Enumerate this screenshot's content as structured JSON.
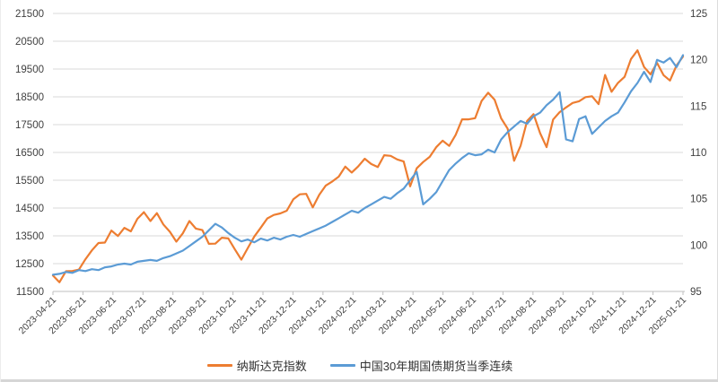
{
  "chart_data": {
    "type": "line",
    "title": "",
    "legend_position": "bottom",
    "grid": "horizontal-gridlines",
    "left_axis": {
      "min": 11500,
      "max": 21500,
      "step": 1000,
      "tick_labels": [
        "21500",
        "20500",
        "19500",
        "18500",
        "17500",
        "16500",
        "15500",
        "14500",
        "13500",
        "12500",
        "11500"
      ]
    },
    "right_axis": {
      "min": 95,
      "max": 125,
      "step": 5,
      "tick_labels": [
        "125",
        "120",
        "115",
        "110",
        "105",
        "100",
        "95"
      ]
    },
    "x_tick_labels": [
      "2023-04-21",
      "2023-05-21",
      "2023-06-21",
      "2023-07-21",
      "2023-08-21",
      "2023-09-21",
      "2023-10-21",
      "2023-11-21",
      "2023-12-21",
      "2024-01-21",
      "2024-02-21",
      "2024-03-21",
      "2024-04-21",
      "2024-05-21",
      "2024-06-21",
      "2024-07-21",
      "2024-08-21",
      "2024-09-21",
      "2024-10-21",
      "2024-11-21",
      "2024-12-21",
      "2025-01-21"
    ],
    "series": [
      {
        "name": "纳斯达克指数",
        "color": "#ED7D31",
        "axis": "left",
        "values": [
          12072,
          11830,
          12227,
          12235,
          12285,
          12658,
          12976,
          13241,
          13259,
          13690,
          13493,
          13788,
          13661,
          14114,
          14353,
          14032,
          14317,
          13909,
          13645,
          13291,
          13591,
          14032,
          13762,
          13708,
          13212,
          13219,
          13431,
          13407,
          13018,
          12643,
          13062,
          13478,
          13798,
          14125,
          14251,
          14305,
          14404,
          14814,
          14993,
          15011,
          14524,
          14973,
          15311,
          15455,
          15629,
          15991,
          15776,
          15997,
          16275,
          16085,
          15973,
          16401,
          16379,
          16248,
          16175,
          15282,
          15928,
          16156,
          16341,
          16686,
          16921,
          16735,
          17133,
          17689,
          17689,
          17733,
          18353,
          18647,
          18398,
          17727,
          17358,
          16200,
          16745,
          17632,
          17877,
          17194,
          16690,
          17684,
          17948,
          18119,
          18280,
          18343,
          18490,
          18519,
          18240,
          19287,
          18680,
          19004,
          19218,
          19860,
          20174,
          19573,
          19311,
          19722,
          19280,
          19088,
          19630,
          19950
        ]
      },
      {
        "name": "中国30年期国债期货当季连续",
        "color": "#5B9BD5",
        "axis": "right",
        "values": [
          96.8,
          96.9,
          97.1,
          97.0,
          97.3,
          97.2,
          97.4,
          97.3,
          97.6,
          97.7,
          97.9,
          98.0,
          97.9,
          98.2,
          98.3,
          98.4,
          98.3,
          98.6,
          98.8,
          99.1,
          99.4,
          99.9,
          100.4,
          100.9,
          101.6,
          102.3,
          101.9,
          101.3,
          100.8,
          100.4,
          100.6,
          100.3,
          100.7,
          100.5,
          100.8,
          100.6,
          100.9,
          101.1,
          100.9,
          101.2,
          101.5,
          101.8,
          102.1,
          102.5,
          102.9,
          103.3,
          103.7,
          103.5,
          104.0,
          104.4,
          104.8,
          105.2,
          105.0,
          105.6,
          106.1,
          107.0,
          107.9,
          104.4,
          105.0,
          105.7,
          106.9,
          108.1,
          108.8,
          109.4,
          109.9,
          109.7,
          109.8,
          110.3,
          110.0,
          111.4,
          112.2,
          112.8,
          113.4,
          113.1,
          113.9,
          114.3,
          115.1,
          115.7,
          116.5,
          111.4,
          111.2,
          113.6,
          113.9,
          112.0,
          112.7,
          113.4,
          113.9,
          114.3,
          115.4,
          116.6,
          117.5,
          118.7,
          117.6,
          120.0,
          119.7,
          120.2,
          119.2,
          120.5
        ]
      }
    ]
  },
  "styles": {
    "grid_color": "#D9D9D9",
    "axis_color": "#BFBFBF",
    "label_color": "#404040",
    "background": "#FFFFFF",
    "nasdaq_color": "#ED7D31",
    "treasury_color": "#5B9BD5"
  }
}
